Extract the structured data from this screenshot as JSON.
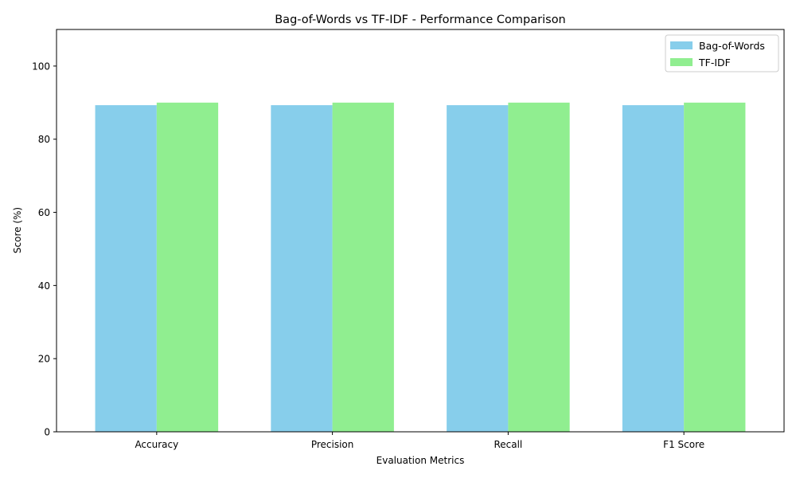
{
  "chart_data": {
    "type": "bar",
    "title": "Bag-of-Words vs TF-IDF - Performance Comparison",
    "xlabel": "Evaluation Metrics",
    "ylabel": "Score (%)",
    "categories": [
      "Accuracy",
      "Precision",
      "Recall",
      "F1 Score"
    ],
    "series": [
      {
        "name": "Bag-of-Words",
        "values": [
          89.3,
          89.3,
          89.3,
          89.3
        ],
        "color": "#87CEEB"
      },
      {
        "name": "TF-IDF",
        "values": [
          90.0,
          90.0,
          90.0,
          90.0
        ],
        "color": "#90EE90"
      }
    ],
    "ylim": [
      0,
      110
    ],
    "yticks": [
      0,
      20,
      40,
      60,
      80,
      100
    ],
    "grid": false,
    "legend_position": "top-right"
  }
}
